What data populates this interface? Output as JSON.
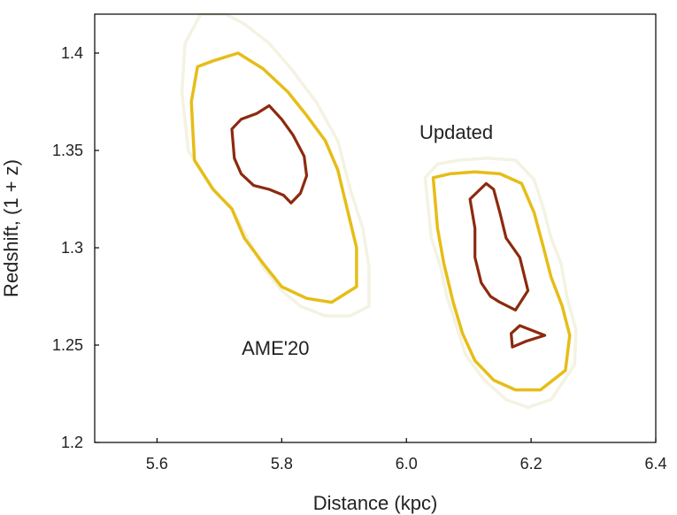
{
  "chart_data": {
    "type": "contour",
    "xlabel": "Distance (kpc)",
    "ylabel": "Redshift, (1 + z)",
    "xlim": [
      5.5,
      6.4
    ],
    "ylim": [
      1.2,
      1.42
    ],
    "xticks": [
      "5.6",
      "5.8",
      "6.0",
      "6.2",
      "6.4"
    ],
    "yticks": [
      "1.2",
      "1.25",
      "1.3",
      "1.35",
      "1.4"
    ],
    "xtick_values": [
      5.6,
      5.8,
      6.0,
      6.2,
      6.4
    ],
    "ytick_values": [
      1.2,
      1.25,
      1.3,
      1.35,
      1.4
    ],
    "grid": false,
    "annotations": [
      {
        "text": "AME'20",
        "x": 5.79,
        "y": 1.245
      },
      {
        "text": "Updated",
        "x": 6.08,
        "y": 1.356
      }
    ],
    "contour_colors": [
      "#f4f2e1",
      "#e6bd18",
      "#8c2a0e"
    ],
    "datasets": [
      {
        "label": "AME'20",
        "contours": [
          {
            "level": "outer",
            "color": "#f4f2e1",
            "points": [
              [
                5.67,
                1.42
              ],
              [
                5.645,
                1.405
              ],
              [
                5.64,
                1.38
              ],
              [
                5.65,
                1.35
              ],
              [
                5.67,
                1.34
              ],
              [
                5.69,
                1.33
              ],
              [
                5.72,
                1.32
              ],
              [
                5.745,
                1.305
              ],
              [
                5.77,
                1.29
              ],
              [
                5.8,
                1.278
              ],
              [
                5.83,
                1.27
              ],
              [
                5.87,
                1.265
              ],
              [
                5.91,
                1.265
              ],
              [
                5.94,
                1.27
              ],
              [
                5.94,
                1.29
              ],
              [
                5.93,
                1.31
              ],
              [
                5.91,
                1.33
              ],
              [
                5.89,
                1.355
              ],
              [
                5.855,
                1.375
              ],
              [
                5.815,
                1.392
              ],
              [
                5.78,
                1.405
              ],
              [
                5.74,
                1.415
              ],
              [
                5.71,
                1.42
              ]
            ]
          },
          {
            "level": "middle",
            "color": "#e6bd18",
            "points": [
              [
                5.665,
                1.393
              ],
              [
                5.655,
                1.375
              ],
              [
                5.66,
                1.345
              ],
              [
                5.69,
                1.33
              ],
              [
                5.72,
                1.32
              ],
              [
                5.74,
                1.305
              ],
              [
                5.77,
                1.292
              ],
              [
                5.8,
                1.28
              ],
              [
                5.84,
                1.274
              ],
              [
                5.88,
                1.272
              ],
              [
                5.92,
                1.28
              ],
              [
                5.92,
                1.3
              ],
              [
                5.905,
                1.32
              ],
              [
                5.89,
                1.34
              ],
              [
                5.87,
                1.355
              ],
              [
                5.84,
                1.368
              ],
              [
                5.81,
                1.38
              ],
              [
                5.77,
                1.392
              ],
              [
                5.73,
                1.4
              ],
              [
                5.69,
                1.396
              ]
            ]
          },
          {
            "level": "inner",
            "color": "#8c2a0e",
            "points": [
              [
                5.72,
                1.361
              ],
              [
                5.724,
                1.346
              ],
              [
                5.735,
                1.338
              ],
              [
                5.755,
                1.332
              ],
              [
                5.78,
                1.33
              ],
              [
                5.803,
                1.327
              ],
              [
                5.815,
                1.323
              ],
              [
                5.83,
                1.328
              ],
              [
                5.84,
                1.337
              ],
              [
                5.836,
                1.347
              ],
              [
                5.818,
                1.358
              ],
              [
                5.8,
                1.366
              ],
              [
                5.78,
                1.373
              ],
              [
                5.76,
                1.369
              ],
              [
                5.735,
                1.366
              ]
            ]
          }
        ]
      },
      {
        "label": "Updated",
        "contours": [
          {
            "level": "outer",
            "color": "#f4f2e1",
            "points": [
              [
                6.03,
                1.336
              ],
              [
                6.04,
                1.305
              ],
              [
                6.055,
                1.29
              ],
              [
                6.065,
                1.275
              ],
              [
                6.08,
                1.26
              ],
              [
                6.095,
                1.245
              ],
              [
                6.125,
                1.232
              ],
              [
                6.16,
                1.222
              ],
              [
                6.195,
                1.218
              ],
              [
                6.232,
                1.222
              ],
              [
                6.27,
                1.24
              ],
              [
                6.272,
                1.258
              ],
              [
                6.258,
                1.274
              ],
              [
                6.248,
                1.292
              ],
              [
                6.232,
                1.305
              ],
              [
                6.22,
                1.32
              ],
              [
                6.205,
                1.335
              ],
              [
                6.175,
                1.345
              ],
              [
                6.13,
                1.346
              ],
              [
                6.085,
                1.345
              ],
              [
                6.05,
                1.343
              ]
            ]
          },
          {
            "level": "middle",
            "color": "#e6bd18",
            "points": [
              [
                6.043,
                1.336
              ],
              [
                6.05,
                1.31
              ],
              [
                6.06,
                1.292
              ],
              [
                6.075,
                1.272
              ],
              [
                6.09,
                1.256
              ],
              [
                6.11,
                1.242
              ],
              [
                6.14,
                1.232
              ],
              [
                6.175,
                1.227
              ],
              [
                6.215,
                1.227
              ],
              [
                6.255,
                1.237
              ],
              [
                6.262,
                1.255
              ],
              [
                6.25,
                1.27
              ],
              [
                6.232,
                1.285
              ],
              [
                6.22,
                1.3
              ],
              [
                6.205,
                1.318
              ],
              [
                6.185,
                1.333
              ],
              [
                6.15,
                1.338
              ],
              [
                6.11,
                1.339
              ],
              [
                6.07,
                1.338
              ]
            ]
          },
          {
            "level": "inner",
            "color": "#8c2a0e",
            "points": [
              [
                6.102,
                1.325
              ],
              [
                6.11,
                1.31
              ],
              [
                6.11,
                1.295
              ],
              [
                6.12,
                1.282
              ],
              [
                6.135,
                1.275
              ],
              [
                6.15,
                1.272
              ],
              [
                6.175,
                1.268
              ],
              [
                6.195,
                1.278
              ],
              [
                6.182,
                1.295
              ],
              [
                6.16,
                1.305
              ],
              [
                6.15,
                1.318
              ],
              [
                6.14,
                1.33
              ],
              [
                6.128,
                1.333
              ]
            ]
          },
          {
            "level": "inner",
            "color": "#8c2a0e",
            "points": [
              [
                6.168,
                1.256
              ],
              [
                6.17,
                1.249
              ],
              [
                6.192,
                1.252
              ],
              [
                6.222,
                1.255
              ],
              [
                6.182,
                1.26
              ]
            ]
          }
        ]
      }
    ]
  }
}
